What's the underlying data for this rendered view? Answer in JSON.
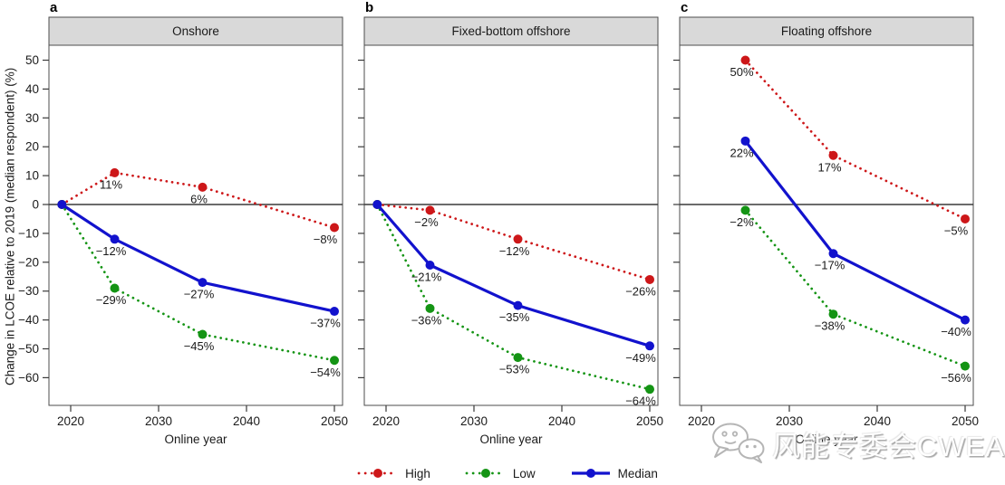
{
  "axis": {
    "y_label": "Change in LCOE relative to 2019 (median respondent) (%)",
    "x_label": "Online year",
    "y_ticks": [
      {
        "value": 50,
        "label": "50"
      },
      {
        "value": 40,
        "label": "40"
      },
      {
        "value": 30,
        "label": "30"
      },
      {
        "value": 20,
        "label": "20"
      },
      {
        "value": 10,
        "label": "10"
      },
      {
        "value": 0,
        "label": "0"
      },
      {
        "value": -10,
        "label": "−10"
      },
      {
        "value": -20,
        "label": "−20"
      },
      {
        "value": -30,
        "label": "−30"
      },
      {
        "value": -40,
        "label": "−40"
      },
      {
        "value": -50,
        "label": "−50"
      },
      {
        "value": -60,
        "label": "−60"
      }
    ],
    "x_ticks": [
      {
        "value": 2020,
        "label": "2020"
      },
      {
        "value": 2030,
        "label": "2030"
      },
      {
        "value": 2040,
        "label": "2040"
      },
      {
        "value": 2050,
        "label": "2050"
      }
    ]
  },
  "colors": {
    "high": "#cd1719",
    "low": "#149414",
    "median": "#1212cd",
    "header_bg": "#d9d9d9",
    "panel_border": "#4d4d4d",
    "zero_line": "#3a3a3a",
    "text": "#1a1a1a"
  },
  "chart_data": [
    {
      "type": "line",
      "panel_label": "a",
      "title": "Onshore",
      "x": [
        2019,
        2025,
        2035,
        2050
      ],
      "series": [
        {
          "name": "High",
          "style": "dotted",
          "color_key": "high",
          "values": [
            0,
            11,
            6,
            -8
          ],
          "point_labels": [
            "",
            "11%",
            "6%",
            "−8%"
          ]
        },
        {
          "name": "Low",
          "style": "dotted",
          "color_key": "low",
          "values": [
            0,
            -29,
            -45,
            -54
          ],
          "point_labels": [
            "",
            "−29%",
            "−45%",
            "−54%"
          ]
        },
        {
          "name": "Median",
          "style": "solid",
          "color_key": "median",
          "values": [
            0,
            -12,
            -27,
            -37
          ],
          "point_labels": [
            "",
            "−12%",
            "−27%",
            "−37%"
          ]
        }
      ]
    },
    {
      "type": "line",
      "panel_label": "b",
      "title": "Fixed-bottom offshore",
      "x": [
        2019,
        2025,
        2035,
        2050
      ],
      "series": [
        {
          "name": "High",
          "style": "dotted",
          "color_key": "high",
          "values": [
            0,
            -2,
            -12,
            -26
          ],
          "point_labels": [
            "",
            "−2%",
            "−12%",
            "−26%"
          ]
        },
        {
          "name": "Low",
          "style": "dotted",
          "color_key": "low",
          "values": [
            0,
            -36,
            -53,
            -64
          ],
          "point_labels": [
            "",
            "−36%",
            "−53%",
            "−64%"
          ]
        },
        {
          "name": "Median",
          "style": "solid",
          "color_key": "median",
          "values": [
            0,
            -21,
            -35,
            -49
          ],
          "point_labels": [
            "",
            "−21%",
            "−35%",
            "−49%"
          ]
        }
      ]
    },
    {
      "type": "line",
      "panel_label": "c",
      "title": "Floating offshore",
      "x": [
        2025,
        2035,
        2050
      ],
      "series": [
        {
          "name": "High",
          "style": "dotted",
          "color_key": "high",
          "values": [
            50,
            17,
            -5
          ],
          "point_labels": [
            "50%",
            "17%",
            "−5%"
          ]
        },
        {
          "name": "Low",
          "style": "dotted",
          "color_key": "low",
          "values": [
            -2,
            -38,
            -56
          ],
          "point_labels": [
            "−2%",
            "−38%",
            "−56%"
          ]
        },
        {
          "name": "Median",
          "style": "solid",
          "color_key": "median",
          "values": [
            22,
            -17,
            -40
          ],
          "point_labels": [
            "22%",
            "−17%",
            "−40%"
          ]
        }
      ]
    }
  ],
  "legend": [
    {
      "label": "High",
      "style": "dotted",
      "color_key": "high"
    },
    {
      "label": "Low",
      "style": "dotted",
      "color_key": "low"
    },
    {
      "label": "Median",
      "style": "solid",
      "color_key": "median"
    }
  ],
  "watermark": {
    "icon": "wechat-icon",
    "text": "风能专委会CWEA"
  }
}
